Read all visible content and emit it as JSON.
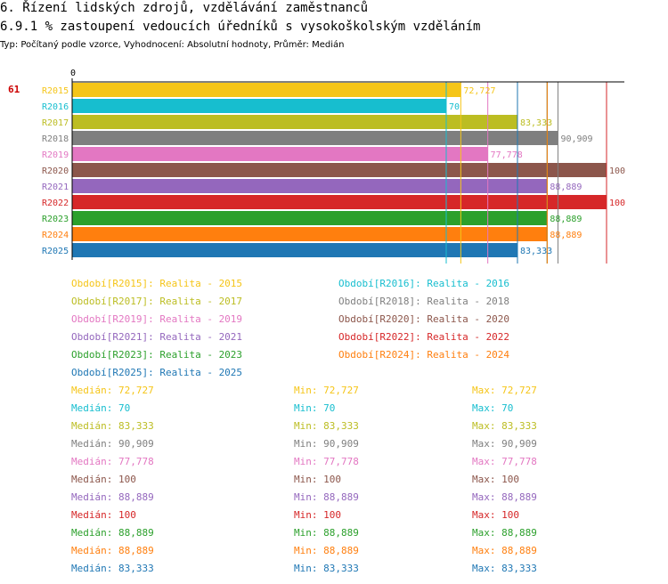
{
  "header": {
    "title": "6. Řízení lidských zdrojů, vzdělávání zaměstnanců",
    "subtitle": "6.9.1 % zastoupení vedoucích úředníků s vysokoškolským vzděláním",
    "meta": "Typ: Počítaný podle vzorce, Vyhodnocení: Absolutní hodnoty, Průměr: Medián",
    "marker": "61"
  },
  "chart_data": {
    "type": "bar",
    "orientation": "horizontal",
    "axis_zero_label": "0",
    "xlim": [
      0,
      100
    ],
    "categories": [
      "R2015",
      "R2016",
      "R2017",
      "R2018",
      "R2019",
      "R2020",
      "R2021",
      "R2022",
      "R2023",
      "R2024",
      "R2025"
    ],
    "values": [
      72.727,
      70,
      83.333,
      90.909,
      77.778,
      100,
      88.889,
      100,
      88.889,
      88.889,
      83.333
    ],
    "value_labels": [
      "72,727",
      "70",
      "83,333",
      "90,909",
      "77,778",
      "100",
      "88,889",
      "100",
      "88,889",
      "88,889",
      "83,333"
    ],
    "colors": [
      "#f5c518",
      "#17becf",
      "#bcbd22",
      "#7f7f7f",
      "#e377c2",
      "#8c564b",
      "#9467bd",
      "#d62728",
      "#2ca02c",
      "#ff7f0e",
      "#1f77b4"
    ]
  },
  "legend": [
    "Období[R2015]: Realita - 2015",
    "Období[R2016]: Realita - 2016",
    "Období[R2017]: Realita - 2017",
    "Období[R2018]: Realita - 2018",
    "Období[R2019]: Realita - 2019",
    "Období[R2020]: Realita - 2020",
    "Období[R2021]: Realita - 2021",
    "Období[R2022]: Realita - 2022",
    "Období[R2023]: Realita - 2023",
    "Období[R2024]: Realita - 2024",
    "Období[R2025]: Realita - 2025"
  ],
  "stats": [
    {
      "median": "Medián: 72,727",
      "min": "Min: 72,727",
      "max": "Max: 72,727"
    },
    {
      "median": "Medián: 70",
      "min": "Min: 70",
      "max": "Max: 70"
    },
    {
      "median": "Medián: 83,333",
      "min": "Min: 83,333",
      "max": "Max: 83,333"
    },
    {
      "median": "Medián: 90,909",
      "min": "Min: 90,909",
      "max": "Max: 90,909"
    },
    {
      "median": "Medián: 77,778",
      "min": "Min: 77,778",
      "max": "Max: 77,778"
    },
    {
      "median": "Medián: 100",
      "min": "Min: 100",
      "max": "Max: 100"
    },
    {
      "median": "Medián: 88,889",
      "min": "Min: 88,889",
      "max": "Max: 88,889"
    },
    {
      "median": "Medián: 100",
      "min": "Min: 100",
      "max": "Max: 100"
    },
    {
      "median": "Medián: 88,889",
      "min": "Min: 88,889",
      "max": "Max: 88,889"
    },
    {
      "median": "Medián: 88,889",
      "min": "Min: 88,889",
      "max": "Max: 88,889"
    },
    {
      "median": "Medián: 83,333",
      "min": "Min: 83,333",
      "max": "Max: 83,333"
    }
  ]
}
